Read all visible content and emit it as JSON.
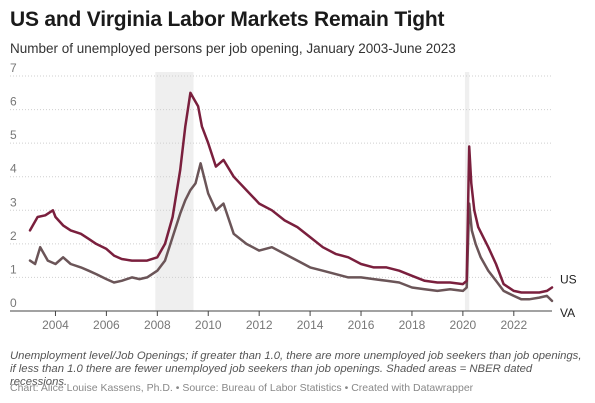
{
  "chart_data": {
    "type": "line",
    "title": "US and Virginia Labor Markets Remain Tight",
    "subtitle": "Number of unemployed persons per job opening, January 2003-June 2023",
    "xlabel": "",
    "ylabel": "",
    "xlim": [
      2003.0,
      2023.5
    ],
    "ylim": [
      0,
      7
    ],
    "x_ticks": [
      "2004",
      "2006",
      "2008",
      "2010",
      "2012",
      "2014",
      "2016",
      "2018",
      "2020",
      "2022"
    ],
    "y_ticks": [
      "0",
      "1",
      "2",
      "3",
      "4",
      "5",
      "6",
      "7"
    ],
    "grid": "horizontal dotted",
    "recessions": [
      [
        2007.92,
        2009.42
      ],
      [
        2020.08,
        2020.25
      ]
    ],
    "series": [
      {
        "name": "US",
        "color": "#7a1f3d",
        "x": [
          2003.0,
          2003.3,
          2003.6,
          2003.9,
          2004.0,
          2004.3,
          2004.6,
          2005.0,
          2005.3,
          2005.6,
          2006.0,
          2006.3,
          2006.6,
          2007.0,
          2007.3,
          2007.6,
          2008.0,
          2008.3,
          2008.6,
          2008.9,
          2009.1,
          2009.3,
          2009.45,
          2009.6,
          2009.75,
          2010.0,
          2010.3,
          2010.6,
          2011.0,
          2011.5,
          2012.0,
          2012.5,
          2013.0,
          2013.5,
          2014.0,
          2014.5,
          2015.0,
          2015.5,
          2016.0,
          2016.5,
          2017.0,
          2017.5,
          2018.0,
          2018.5,
          2019.0,
          2019.5,
          2020.0,
          2020.15,
          2020.25,
          2020.33,
          2020.45,
          2020.6,
          2020.8,
          2021.0,
          2021.3,
          2021.6,
          2022.0,
          2022.3,
          2022.6,
          2023.0,
          2023.3,
          2023.5
        ],
        "values": [
          2.4,
          2.8,
          2.85,
          3.0,
          2.8,
          2.55,
          2.4,
          2.3,
          2.15,
          2.0,
          1.85,
          1.65,
          1.55,
          1.5,
          1.5,
          1.5,
          1.6,
          2.0,
          2.8,
          4.2,
          5.5,
          6.5,
          6.3,
          6.1,
          5.5,
          5.0,
          4.3,
          4.5,
          4.0,
          3.6,
          3.2,
          3.0,
          2.7,
          2.5,
          2.2,
          1.9,
          1.7,
          1.6,
          1.4,
          1.3,
          1.3,
          1.2,
          1.05,
          0.9,
          0.85,
          0.85,
          0.8,
          0.9,
          4.9,
          3.8,
          3.0,
          2.5,
          2.2,
          1.9,
          1.4,
          0.8,
          0.6,
          0.55,
          0.55,
          0.55,
          0.6,
          0.7
        ]
      },
      {
        "name": "VA",
        "color": "#6b5558",
        "x": [
          2003.0,
          2003.2,
          2003.4,
          2003.7,
          2004.0,
          2004.3,
          2004.6,
          2005.0,
          2005.3,
          2005.6,
          2006.0,
          2006.3,
          2006.6,
          2007.0,
          2007.3,
          2007.6,
          2008.0,
          2008.3,
          2008.6,
          2008.9,
          2009.1,
          2009.3,
          2009.5,
          2009.7,
          2010.0,
          2010.3,
          2010.6,
          2011.0,
          2011.5,
          2012.0,
          2012.5,
          2013.0,
          2013.5,
          2014.0,
          2014.5,
          2015.0,
          2015.5,
          2016.0,
          2016.5,
          2017.0,
          2017.5,
          2018.0,
          2018.5,
          2019.0,
          2019.5,
          2020.0,
          2020.15,
          2020.25,
          2020.35,
          2020.5,
          2020.7,
          2021.0,
          2021.3,
          2021.6,
          2022.0,
          2022.3,
          2022.6,
          2023.0,
          2023.3,
          2023.5
        ],
        "values": [
          1.5,
          1.4,
          1.9,
          1.5,
          1.4,
          1.6,
          1.4,
          1.3,
          1.2,
          1.1,
          0.95,
          0.85,
          0.9,
          1.0,
          0.95,
          1.0,
          1.2,
          1.5,
          2.2,
          2.9,
          3.3,
          3.6,
          3.8,
          4.4,
          3.5,
          3.0,
          3.2,
          2.3,
          2.0,
          1.8,
          1.9,
          1.7,
          1.5,
          1.3,
          1.2,
          1.1,
          1.0,
          1.0,
          0.95,
          0.9,
          0.85,
          0.7,
          0.65,
          0.6,
          0.65,
          0.6,
          0.7,
          3.2,
          2.4,
          2.0,
          1.6,
          1.2,
          0.9,
          0.6,
          0.45,
          0.35,
          0.35,
          0.4,
          0.45,
          0.3
        ]
      }
    ]
  },
  "note": "Unemployment level/Job Openings; if greater than 1.0, there are more unemployed job seekers than job openings, if less than 1.0 there are fewer unemployed job seekers than job openings. Shaded areas = NBER dated recessions.",
  "footer": "Chart: Alice Louise Kassens, Ph.D. • Source: Bureau of Labor Statistics • Created with Datawrapper"
}
